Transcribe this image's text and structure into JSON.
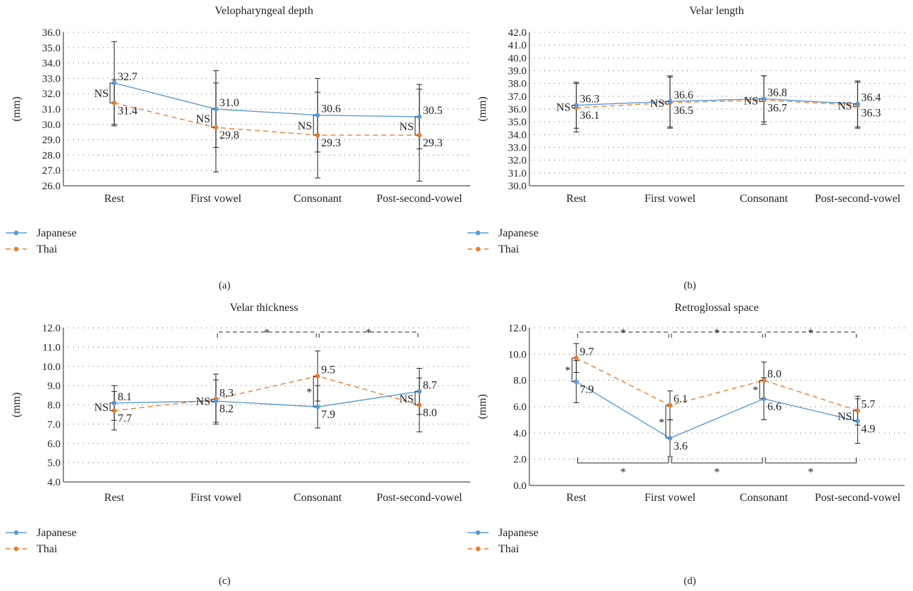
{
  "colors": {
    "japanese": "#5b9bd5",
    "thai": "#ed7d31",
    "axis": "#222222",
    "grid": "#666666"
  },
  "chart_data": [
    {
      "type": "line",
      "panel": "(a)",
      "title": "Velopharyngeal depth",
      "ylabel": "(mm)",
      "categories": [
        "Rest",
        "First vowel",
        "Consonant",
        "Post-second-vowel"
      ],
      "ylim": [
        26.0,
        36.0
      ],
      "ystep": 1.0,
      "ytick_decimals": 1,
      "grid": "dotted",
      "legend": "bottom-left",
      "series": [
        {
          "name": "Japanese",
          "style": "solid",
          "color": "#5b9bd5",
          "values": [
            32.7,
            31.0,
            30.6,
            30.5
          ],
          "labels": [
            "32.7",
            "31.0",
            "30.6",
            "30.5"
          ],
          "error": [
            2.7,
            2.5,
            2.4,
            2.1
          ]
        },
        {
          "name": "Thai",
          "style": "dashed",
          "color": "#ed7d31",
          "values": [
            31.4,
            29.8,
            29.3,
            29.3
          ],
          "labels": [
            "31.4",
            "29.8",
            "29.3",
            "29.3"
          ],
          "error": [
            1.5,
            2.9,
            2.8,
            3.0
          ]
        }
      ],
      "between_group_sig": [
        "NS",
        "NS",
        "NS",
        "NS"
      ],
      "thai_pairwise": [],
      "japanese_pairwise": []
    },
    {
      "type": "line",
      "panel": "(b)",
      "title": "Velar length",
      "ylabel": "(mm)",
      "categories": [
        "Rest",
        "First vowel",
        "Consonant",
        "Post-second-vowel"
      ],
      "ylim": [
        30.0,
        42.0
      ],
      "ystep": 1.0,
      "ytick_decimals": 1,
      "grid": "dotted",
      "legend": "bottom-left",
      "series": [
        {
          "name": "Japanese",
          "style": "solid",
          "color": "#5b9bd5",
          "values": [
            36.3,
            36.6,
            36.8,
            36.4
          ],
          "labels": [
            "36.3",
            "36.6",
            "36.8",
            "36.4"
          ],
          "error": [
            1.8,
            2.0,
            1.8,
            1.8
          ]
        },
        {
          "name": "Thai",
          "style": "dashed",
          "color": "#ed7d31",
          "values": [
            36.1,
            36.5,
            36.7,
            36.3
          ],
          "labels": [
            "36.1",
            "36.5",
            "36.7",
            "36.3"
          ],
          "error": [
            1.9,
            2.0,
            1.9,
            1.8
          ]
        }
      ],
      "between_group_sig": [
        "NS",
        "NS",
        "NS",
        "NS"
      ],
      "thai_pairwise": [],
      "japanese_pairwise": []
    },
    {
      "type": "line",
      "panel": "(c)",
      "title": "Velar thickness",
      "ylabel": "(mm)",
      "categories": [
        "Rest",
        "First vowel",
        "Consonant",
        "Post-second-vowel"
      ],
      "ylim": [
        4.0,
        12.0
      ],
      "ystep": 1.0,
      "ytick_decimals": 1,
      "grid": "dotted",
      "legend": "bottom-left",
      "series": [
        {
          "name": "Japanese",
          "style": "solid",
          "color": "#5b9bd5",
          "values": [
            8.1,
            8.2,
            7.9,
            8.7
          ],
          "labels": [
            "8.1",
            "8.2",
            "7.9",
            "8.7"
          ],
          "error": [
            0.9,
            1.1,
            1.1,
            1.2
          ]
        },
        {
          "name": "Thai",
          "style": "dashed",
          "color": "#ed7d31",
          "values": [
            7.7,
            8.3,
            9.5,
            8.0
          ],
          "labels": [
            "7.7",
            "8.3",
            "9.5",
            "8.0"
          ],
          "error": [
            1.0,
            1.3,
            1.3,
            1.4
          ]
        }
      ],
      "between_group_sig": [
        "NS",
        "NS",
        "*",
        "NS"
      ],
      "thai_pairwise": [
        {
          "from": 1,
          "to": 2,
          "label": "*"
        },
        {
          "from": 2,
          "to": 3,
          "label": "*"
        }
      ],
      "japanese_pairwise": []
    },
    {
      "type": "line",
      "panel": "(d)",
      "title": "Retroglossal space",
      "ylabel": "(mm)",
      "categories": [
        "Rest",
        "First vowel",
        "Consonant",
        "Post-second-vowel"
      ],
      "ylim": [
        0.0,
        12.0
      ],
      "ystep": 2.0,
      "ytick_decimals": 1,
      "grid": "dotted",
      "legend": "bottom-left",
      "series": [
        {
          "name": "Japanese",
          "style": "solid",
          "color": "#5b9bd5",
          "values": [
            7.9,
            3.6,
            6.6,
            4.9
          ],
          "labels": [
            "7.9",
            "3.6",
            "6.6",
            "4.9"
          ],
          "error": [
            1.6,
            1.4,
            1.6,
            1.7
          ]
        },
        {
          "name": "Thai",
          "style": "dashed",
          "color": "#ed7d31",
          "values": [
            9.7,
            6.1,
            8.0,
            5.7
          ],
          "labels": [
            "9.7",
            "6.1",
            "8.0",
            "5.7"
          ],
          "error": [
            1.1,
            1.1,
            1.4,
            1.1
          ]
        }
      ],
      "between_group_sig": [
        "*",
        "*",
        "*",
        "NS"
      ],
      "thai_pairwise": [
        {
          "from": 0,
          "to": 1,
          "label": "*"
        },
        {
          "from": 1,
          "to": 2,
          "label": "*"
        },
        {
          "from": 2,
          "to": 3,
          "label": "*"
        }
      ],
      "japanese_pairwise": [
        {
          "from": 0,
          "to": 1,
          "label": "*"
        },
        {
          "from": 1,
          "to": 2,
          "label": "*"
        },
        {
          "from": 2,
          "to": 3,
          "label": "*"
        }
      ]
    }
  ]
}
